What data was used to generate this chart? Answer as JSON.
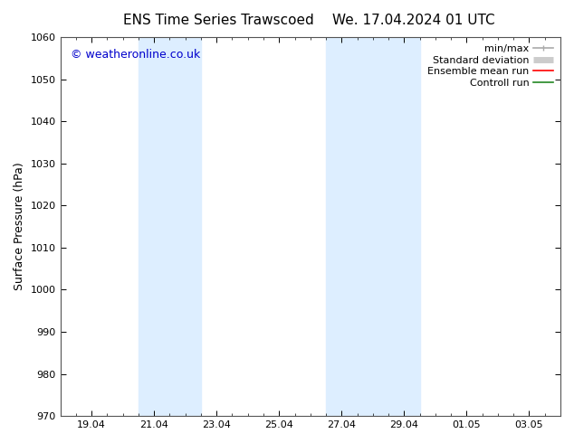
{
  "title_left": "ENS Time Series Trawscoed",
  "title_right": "We. 17.04.2024 01 UTC",
  "ylabel": "Surface Pressure (hPa)",
  "ylim": [
    970,
    1060
  ],
  "yticks": [
    970,
    980,
    990,
    1000,
    1010,
    1020,
    1030,
    1040,
    1050,
    1060
  ],
  "xlim": [
    0,
    16
  ],
  "xtick_labels": [
    "19.04",
    "21.04",
    "23.04",
    "25.04",
    "27.04",
    "29.04",
    "01.05",
    "03.05"
  ],
  "xtick_positions": [
    1,
    3,
    5,
    7,
    9,
    11,
    13,
    15
  ],
  "shaded_bands": [
    {
      "x_start": 2.5,
      "x_end": 4.5,
      "color": "#ddeeff"
    },
    {
      "x_start": 8.5,
      "x_end": 11.5,
      "color": "#ddeeff"
    }
  ],
  "watermark": "© weatheronline.co.uk",
  "watermark_color": "#0000cc",
  "legend_items": [
    {
      "label": "min/max",
      "color": "#aaaaaa",
      "lw": 1.2
    },
    {
      "label": "Standard deviation",
      "color": "#cccccc",
      "lw": 5
    },
    {
      "label": "Ensemble mean run",
      "color": "#ff0000",
      "lw": 1.2
    },
    {
      "label": "Controll run",
      "color": "#228822",
      "lw": 1.2
    }
  ],
  "bg_color": "#ffffff",
  "axes_bg_color": "#ffffff",
  "title_fontsize": 11,
  "tick_fontsize": 8,
  "label_fontsize": 9,
  "legend_fontsize": 8,
  "watermark_fontsize": 9
}
